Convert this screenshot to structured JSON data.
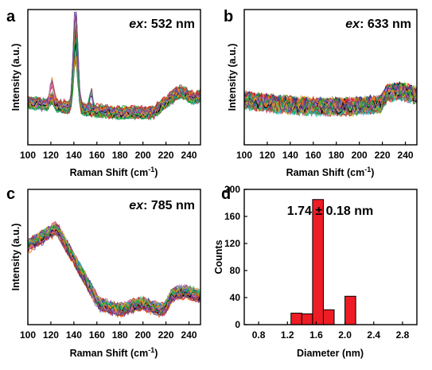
{
  "chart_data": [
    {
      "panel": "a",
      "type": "line",
      "annotation_prefix": "ex",
      "annotation_value": ": 532 nm",
      "xlabel_main": "Raman Shift (cm",
      "xlabel_sup": "-1",
      "xlabel_end": ")",
      "ylabel": "Intensity (a.u.)",
      "xlim": [
        100,
        250
      ],
      "xticks": [
        "100",
        "120",
        "140",
        "160",
        "180",
        "200",
        "220",
        "240"
      ],
      "y_ticks_shown": false,
      "n_spectra": 60,
      "peaks_cm": [
        120,
        140,
        155
      ]
    },
    {
      "panel": "b",
      "type": "line",
      "annotation_prefix": "ex",
      "annotation_value": ": 633 nm",
      "xlabel_main": "Raman Shift (cm",
      "xlabel_sup": "-1",
      "xlabel_end": ")",
      "ylabel": "Intensity (a.u.)",
      "xlim": [
        100,
        250
      ],
      "xticks": [
        "100",
        "120",
        "140",
        "160",
        "180",
        "200",
        "220",
        "240"
      ],
      "y_ticks_shown": false,
      "n_spectra": 60
    },
    {
      "panel": "c",
      "type": "line",
      "annotation_prefix": "ex",
      "annotation_value": ": 785 nm",
      "xlabel_main": "Raman Shift (cm",
      "xlabel_sup": "-1",
      "xlabel_end": ")",
      "ylabel": "Intensity (a.u.)",
      "xlim": [
        100,
        250
      ],
      "xticks": [
        "100",
        "120",
        "140",
        "160",
        "180",
        "200",
        "220",
        "240"
      ],
      "y_ticks_shown": false,
      "n_spectra": 60,
      "peaks_cm": [
        125,
        150
      ]
    },
    {
      "panel": "d",
      "type": "bar",
      "annotation": "1.74 ± 0.18 nm",
      "xlabel": "Diameter (nm)",
      "ylabel": "Counts",
      "xlim": [
        0.6,
        3.0
      ],
      "ylim": [
        0,
        200
      ],
      "xticks": [
        "0.8",
        "1.2",
        "1.6",
        "2.0",
        "2.4",
        "2.8"
      ],
      "yticks": [
        "0",
        "40",
        "80",
        "120",
        "160",
        "200"
      ],
      "bar_width": 0.15,
      "bar_color": "#ee1c25",
      "bins": [
        {
          "center": 1.325,
          "value": 17
        },
        {
          "center": 1.475,
          "value": 16
        },
        {
          "center": 1.625,
          "value": 185
        },
        {
          "center": 1.775,
          "value": 22
        },
        {
          "center": 2.075,
          "value": 42
        }
      ]
    }
  ],
  "colors": [
    "#1f3a93",
    "#2ca02c",
    "#d62728",
    "#17becf",
    "#9467bd",
    "#8c564b",
    "#e377c2",
    "#000000",
    "#bcbd22",
    "#ff7f0e",
    "#00a651",
    "#6a3d9a",
    "#1f77b4",
    "#b15928",
    "#33a02c",
    "#e31a1c"
  ]
}
